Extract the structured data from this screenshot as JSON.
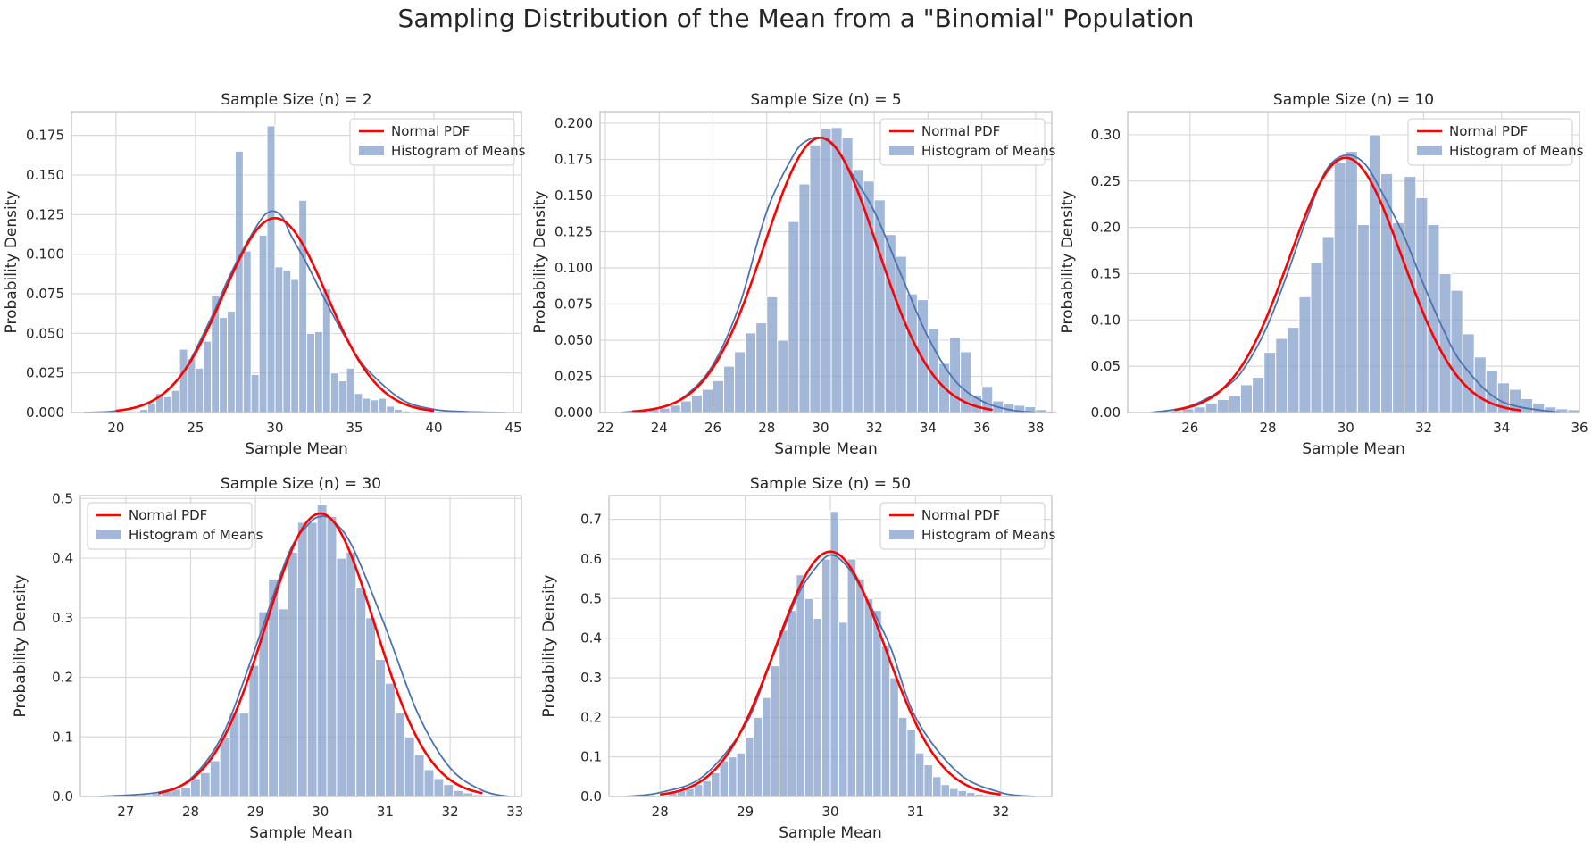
{
  "figure": {
    "suptitle": "Sampling Distribution of the Mean from a \"Binomial\" Population"
  },
  "colors": {
    "bar_fill": "#7f9bc9",
    "bar_edge": "#ffffff",
    "kde": "#4c72b0",
    "normal_pdf": "#ff0000",
    "grid": "#d9d9d9",
    "spine": "#cccccc"
  },
  "chart_data": [
    {
      "type": "bar",
      "title": "Sample Size (n) = 2",
      "xlabel": "Sample Mean",
      "ylabel": "Probability Density",
      "xlim": [
        17.2,
        45.5
      ],
      "ylim": [
        0,
        0.19
      ],
      "xticks": [
        20,
        25,
        30,
        35,
        40,
        45
      ],
      "yticks": [
        0.0,
        0.025,
        0.05,
        0.075,
        0.1,
        0.125,
        0.15,
        0.175
      ],
      "ytick_labels": [
        "0.000",
        "0.025",
        "0.050",
        "0.075",
        "0.100",
        "0.125",
        "0.150",
        "0.175"
      ],
      "legend": {
        "position": "upper right",
        "entries": [
          "Normal PDF",
          "Histogram of Means"
        ]
      },
      "grid": true,
      "histogram": {
        "bin_width": 0.5,
        "bin_start": 21.5,
        "densities": [
          0.002,
          0.006,
          0.012,
          0.01,
          0.014,
          0.04,
          0.034,
          0.028,
          0.045,
          0.074,
          0.06,
          0.064,
          0.165,
          0.102,
          0.024,
          0.112,
          0.181,
          0.092,
          0.09,
          0.084,
          0.134,
          0.05,
          0.051,
          0.078,
          0.025,
          0.02,
          0.028,
          0.012,
          0.009,
          0.008,
          0.009,
          0.004,
          0.002,
          0.001
        ]
      },
      "normal_pdf": {
        "mean": 30.0,
        "sd": 3.25,
        "x_range": [
          20.0,
          40.0
        ]
      },
      "kde": {
        "x": [
          18,
          20,
          22,
          24,
          26,
          27,
          28,
          29,
          29.5,
          30,
          30.5,
          31,
          32,
          33,
          34,
          35,
          36,
          38,
          40,
          42,
          44.5
        ],
        "y": [
          0.0,
          0.001,
          0.006,
          0.022,
          0.06,
          0.083,
          0.103,
          0.12,
          0.126,
          0.127,
          0.123,
          0.112,
          0.094,
          0.074,
          0.055,
          0.038,
          0.025,
          0.008,
          0.002,
          0.0005,
          0.0
        ]
      }
    },
    {
      "type": "bar",
      "title": "Sample Size (n) = 5",
      "xlabel": "Sample Mean",
      "ylabel": "Probability Density",
      "xlim": [
        21.8,
        38.6
      ],
      "ylim": [
        0,
        0.208
      ],
      "xticks": [
        22,
        24,
        26,
        28,
        30,
        32,
        34,
        36,
        38
      ],
      "yticks": [
        0.0,
        0.025,
        0.05,
        0.075,
        0.1,
        0.125,
        0.15,
        0.175,
        0.2
      ],
      "ytick_labels": [
        "0.000",
        "0.025",
        "0.050",
        "0.075",
        "0.100",
        "0.125",
        "0.150",
        "0.175",
        "0.200"
      ],
      "legend": {
        "position": "upper right",
        "entries": [
          "Normal PDF",
          "Histogram of Means"
        ]
      },
      "grid": true,
      "histogram": {
        "bin_width": 0.4,
        "bin_start": 22.8,
        "densities": [
          0.0,
          0.001,
          0.002,
          0.003,
          0.005,
          0.008,
          0.012,
          0.016,
          0.022,
          0.032,
          0.042,
          0.055,
          0.062,
          0.08,
          0.05,
          0.132,
          0.158,
          0.185,
          0.196,
          0.197,
          0.19,
          0.168,
          0.16,
          0.147,
          0.123,
          0.108,
          0.082,
          0.078,
          0.058,
          0.034,
          0.052,
          0.042,
          0.012,
          0.018,
          0.008,
          0.006,
          0.005,
          0.004,
          0.002,
          0.001
        ]
      },
      "normal_pdf": {
        "mean": 30.0,
        "sd": 2.1,
        "x_range": [
          23.0,
          36.4
        ]
      },
      "kde": {
        "x": [
          22.6,
          24,
          25,
          26,
          27,
          28,
          29,
          29.5,
          30,
          30.5,
          31,
          32,
          33,
          34,
          35,
          36,
          37,
          38
        ],
        "y": [
          0.0,
          0.003,
          0.012,
          0.033,
          0.075,
          0.139,
          0.178,
          0.188,
          0.19,
          0.184,
          0.17,
          0.139,
          0.095,
          0.052,
          0.022,
          0.008,
          0.002,
          0.0
        ]
      }
    },
    {
      "type": "bar",
      "title": "Sample Size (n) = 10",
      "xlabel": "Sample Mean",
      "ylabel": "Probability Density",
      "xlim": [
        24.4,
        36.0
      ],
      "ylim": [
        0,
        0.325
      ],
      "xticks": [
        26,
        28,
        30,
        32,
        34,
        36
      ],
      "yticks": [
        0.0,
        0.05,
        0.1,
        0.15,
        0.2,
        0.25,
        0.3
      ],
      "ytick_labels": [
        "0.00",
        "0.05",
        "0.10",
        "0.15",
        "0.20",
        "0.25",
        "0.30"
      ],
      "legend": {
        "position": "upper right",
        "entries": [
          "Normal PDF",
          "Histogram of Means"
        ]
      },
      "grid": true,
      "histogram": {
        "bin_width": 0.3,
        "bin_start": 25.2,
        "densities": [
          0.001,
          0.002,
          0.004,
          0.006,
          0.01,
          0.014,
          0.018,
          0.03,
          0.038,
          0.065,
          0.08,
          0.092,
          0.125,
          0.162,
          0.19,
          0.27,
          0.282,
          0.203,
          0.3,
          0.258,
          0.205,
          0.255,
          0.232,
          0.203,
          0.15,
          0.132,
          0.085,
          0.06,
          0.045,
          0.032,
          0.025,
          0.015,
          0.01,
          0.006,
          0.004,
          0.003
        ]
      },
      "normal_pdf": {
        "mean": 30.0,
        "sd": 1.45,
        "x_range": [
          25.6,
          34.5
        ]
      },
      "kde": {
        "x": [
          25.0,
          26,
          27,
          27.5,
          28,
          28.5,
          29,
          29.5,
          30,
          30.5,
          31,
          31.5,
          32,
          32.5,
          33,
          34,
          35.5
        ],
        "y": [
          0.0,
          0.007,
          0.03,
          0.055,
          0.095,
          0.15,
          0.21,
          0.262,
          0.278,
          0.268,
          0.232,
          0.19,
          0.138,
          0.09,
          0.052,
          0.012,
          0.0
        ]
      }
    },
    {
      "type": "bar",
      "title": "Sample Size (n) = 30",
      "xlabel": "Sample Mean",
      "ylabel": "Probability Density",
      "xlim": [
        26.3,
        33.1
      ],
      "ylim": [
        0,
        0.505
      ],
      "xticks": [
        27,
        28,
        29,
        30,
        31,
        32,
        33
      ],
      "yticks": [
        0.0,
        0.1,
        0.2,
        0.3,
        0.4,
        0.5
      ],
      "ytick_labels": [
        "0.0",
        "0.1",
        "0.2",
        "0.3",
        "0.4",
        "0.5"
      ],
      "legend": {
        "position": "upper left",
        "entries": [
          "Normal PDF",
          "Histogram of Means"
        ]
      },
      "grid": true,
      "histogram": {
        "bin_width": 0.15,
        "bin_start": 27.1,
        "densities": [
          0.001,
          0.003,
          0.005,
          0.008,
          0.012,
          0.015,
          0.03,
          0.04,
          0.06,
          0.1,
          0.14,
          0.14,
          0.22,
          0.31,
          0.365,
          0.315,
          0.41,
          0.46,
          0.46,
          0.49,
          0.47,
          0.4,
          0.41,
          0.35,
          0.3,
          0.23,
          0.19,
          0.14,
          0.1,
          0.07,
          0.045,
          0.03,
          0.02,
          0.01,
          0.006,
          0.003,
          0.002,
          0.001
        ]
      },
      "normal_pdf": {
        "mean": 30.0,
        "sd": 0.84,
        "x_range": [
          27.5,
          32.5
        ]
      },
      "kde": {
        "x": [
          26.6,
          27.5,
          28,
          28.5,
          29,
          29.5,
          29.8,
          30,
          30.2,
          30.5,
          31,
          31.5,
          32,
          32.5,
          32.9
        ],
        "y": [
          0.0,
          0.007,
          0.03,
          0.105,
          0.25,
          0.405,
          0.455,
          0.47,
          0.462,
          0.418,
          0.285,
          0.14,
          0.048,
          0.01,
          0.0
        ]
      }
    },
    {
      "type": "bar",
      "title": "Sample Size (n) = 50",
      "xlabel": "Sample Mean",
      "ylabel": "Probability Density",
      "xlim": [
        27.4,
        32.6
      ],
      "ylim": [
        0,
        0.76
      ],
      "xticks": [
        28,
        29,
        30,
        31,
        32
      ],
      "yticks": [
        0.0,
        0.1,
        0.2,
        0.3,
        0.4,
        0.5,
        0.6,
        0.7
      ],
      "ytick_labels": [
        "0.0",
        "0.1",
        "0.2",
        "0.3",
        "0.4",
        "0.5",
        "0.6",
        "0.7"
      ],
      "legend": {
        "position": "upper right",
        "entries": [
          "Normal PDF",
          "Histogram of Means"
        ]
      },
      "grid": true,
      "histogram": {
        "bin_width": 0.1,
        "bin_start": 28.1,
        "densities": [
          0.01,
          0.015,
          0.02,
          0.03,
          0.04,
          0.06,
          0.09,
          0.1,
          0.11,
          0.15,
          0.2,
          0.25,
          0.33,
          0.42,
          0.47,
          0.56,
          0.5,
          0.45,
          0.6,
          0.72,
          0.44,
          0.6,
          0.55,
          0.5,
          0.47,
          0.38,
          0.3,
          0.2,
          0.17,
          0.11,
          0.08,
          0.05,
          0.03,
          0.02,
          0.015,
          0.01,
          0.006,
          0.004,
          0.002
        ]
      },
      "normal_pdf": {
        "mean": 30.0,
        "sd": 0.645,
        "x_range": [
          28.0,
          32.0
        ]
      },
      "kde": {
        "x": [
          27.6,
          28,
          28.5,
          29,
          29.3,
          29.6,
          29.8,
          30,
          30.2,
          30.4,
          30.7,
          31,
          31.5,
          32,
          32.4
        ],
        "y": [
          0.0,
          0.01,
          0.05,
          0.18,
          0.34,
          0.5,
          0.57,
          0.61,
          0.58,
          0.51,
          0.38,
          0.2,
          0.06,
          0.01,
          0.0
        ]
      }
    }
  ]
}
